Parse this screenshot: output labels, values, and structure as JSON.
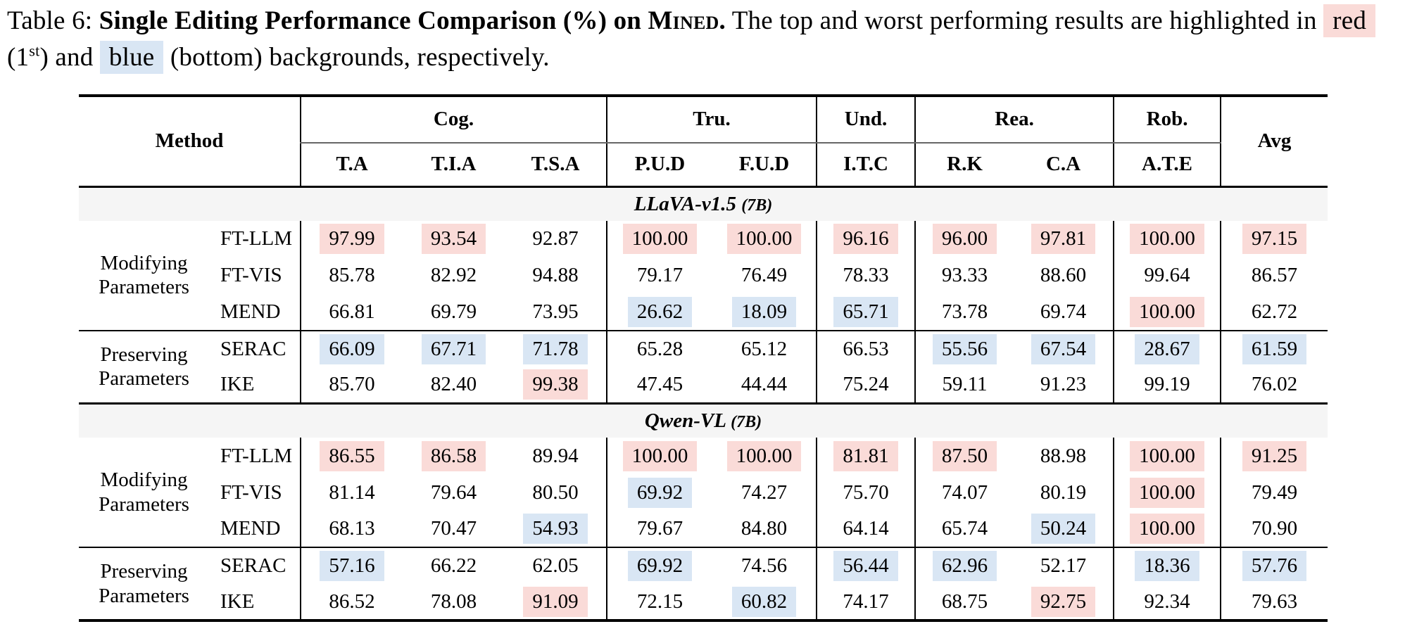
{
  "colors": {
    "top_highlight": "#fadbd8",
    "bottom_highlight": "#d9e6f4",
    "section_bg": "#f5f5f5"
  },
  "caption": {
    "prefix": "Table 6:",
    "bold_main": "Single Editing Performance Comparison (%) on",
    "smallcaps": "Mined.",
    "tail_1": "The top and worst performing results are highlighted in",
    "red_word": "red",
    "mid_1": "(1",
    "sup": "st",
    "mid_2": ") and",
    "blue_word": "blue",
    "tail_2": "(bottom) backgrounds, respectively."
  },
  "table": {
    "col_headers": {
      "method": "Method",
      "avg": "Avg",
      "groups": [
        {
          "label": "Cog.",
          "cols": [
            "T.A",
            "T.I.A",
            "T.S.A"
          ]
        },
        {
          "label": "Tru.",
          "cols": [
            "P.U.D",
            "F.U.D"
          ]
        },
        {
          "label": "Und.",
          "cols": [
            "I.T.C"
          ]
        },
        {
          "label": "Rea.",
          "cols": [
            "R.K",
            "C.A"
          ]
        },
        {
          "label": "Rob.",
          "cols": [
            "A.T.E"
          ]
        }
      ]
    },
    "sections": [
      {
        "model": "LLaVA-v1.5",
        "model_size": "(7B)",
        "groups": [
          {
            "category": "Modifying Parameters",
            "rows": [
              {
                "method": "FT-LLM",
                "values": [
                  "97.99",
                  "93.54",
                  "92.87",
                  "100.00",
                  "100.00",
                  "96.16",
                  "96.00",
                  "97.81",
                  "100.00",
                  "97.15"
                ],
                "hl": [
                  "red",
                  "red",
                  "",
                  "red",
                  "red",
                  "red",
                  "red",
                  "red",
                  "red",
                  "red"
                ]
              },
              {
                "method": "FT-VIS",
                "values": [
                  "85.78",
                  "82.92",
                  "94.88",
                  "79.17",
                  "76.49",
                  "78.33",
                  "93.33",
                  "88.60",
                  "99.64",
                  "86.57"
                ],
                "hl": [
                  "",
                  "",
                  "",
                  "",
                  "",
                  "",
                  "",
                  "",
                  "",
                  ""
                ]
              },
              {
                "method": "MEND",
                "values": [
                  "66.81",
                  "69.79",
                  "73.95",
                  "26.62",
                  "18.09",
                  "65.71",
                  "73.78",
                  "69.74",
                  "100.00",
                  "62.72"
                ],
                "hl": [
                  "",
                  "",
                  "",
                  "blue",
                  "blue",
                  "blue",
                  "",
                  "",
                  "red",
                  ""
                ]
              }
            ]
          },
          {
            "category": "Preserving Parameters",
            "rows": [
              {
                "method": "SERAC",
                "values": [
                  "66.09",
                  "67.71",
                  "71.78",
                  "65.28",
                  "65.12",
                  "66.53",
                  "55.56",
                  "67.54",
                  "28.67",
                  "61.59"
                ],
                "hl": [
                  "blue",
                  "blue",
                  "blue",
                  "",
                  "",
                  "",
                  "blue",
                  "blue",
                  "blue",
                  "blue"
                ]
              },
              {
                "method": "IKE",
                "values": [
                  "85.70",
                  "82.40",
                  "99.38",
                  "47.45",
                  "44.44",
                  "75.24",
                  "59.11",
                  "91.23",
                  "99.19",
                  "76.02"
                ],
                "hl": [
                  "",
                  "",
                  "red",
                  "",
                  "",
                  "",
                  "",
                  "",
                  "",
                  ""
                ]
              }
            ]
          }
        ]
      },
      {
        "model": "Qwen-VL",
        "model_size": "(7B)",
        "groups": [
          {
            "category": "Modifying Parameters",
            "rows": [
              {
                "method": "FT-LLM",
                "values": [
                  "86.55",
                  "86.58",
                  "89.94",
                  "100.00",
                  "100.00",
                  "81.81",
                  "87.50",
                  "88.98",
                  "100.00",
                  "91.25"
                ],
                "hl": [
                  "red",
                  "red",
                  "",
                  "red",
                  "red",
                  "red",
                  "red",
                  "",
                  "red",
                  "red"
                ]
              },
              {
                "method": "FT-VIS",
                "values": [
                  "81.14",
                  "79.64",
                  "80.50",
                  "69.92",
                  "74.27",
                  "75.70",
                  "74.07",
                  "80.19",
                  "100.00",
                  "79.49"
                ],
                "hl": [
                  "",
                  "",
                  "",
                  "blue",
                  "",
                  "",
                  "",
                  "",
                  "red",
                  ""
                ]
              },
              {
                "method": "MEND",
                "values": [
                  "68.13",
                  "70.47",
                  "54.93",
                  "79.67",
                  "84.80",
                  "64.14",
                  "65.74",
                  "50.24",
                  "100.00",
                  "70.90"
                ],
                "hl": [
                  "",
                  "",
                  "blue",
                  "",
                  "",
                  "",
                  "",
                  "blue",
                  "red",
                  ""
                ]
              }
            ]
          },
          {
            "category": "Preserving Parameters",
            "rows": [
              {
                "method": "SERAC",
                "values": [
                  "57.16",
                  "66.22",
                  "62.05",
                  "69.92",
                  "74.56",
                  "56.44",
                  "62.96",
                  "52.17",
                  "18.36",
                  "57.76"
                ],
                "hl": [
                  "blue",
                  "",
                  "",
                  "blue",
                  "",
                  "blue",
                  "blue",
                  "",
                  "blue",
                  "blue"
                ]
              },
              {
                "method": "IKE",
                "values": [
                  "86.52",
                  "78.08",
                  "91.09",
                  "72.15",
                  "60.82",
                  "74.17",
                  "68.75",
                  "92.75",
                  "92.34",
                  "79.63"
                ],
                "hl": [
                  "",
                  "",
                  "red",
                  "",
                  "blue",
                  "",
                  "",
                  "red",
                  "",
                  ""
                ]
              }
            ]
          }
        ]
      }
    ]
  }
}
